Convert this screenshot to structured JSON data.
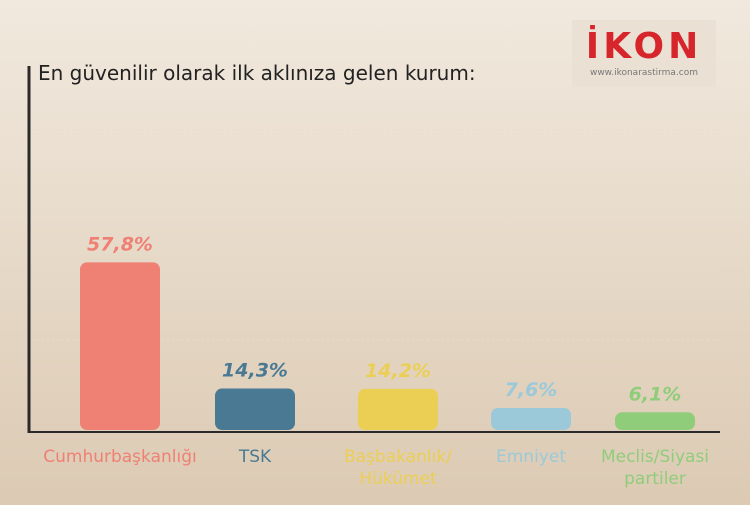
{
  "chart_data": {
    "type": "bar",
    "title": "En güvenilir olarak ilk aklınıza gelen kurum:",
    "categories": [
      "Cumhurbaşkanlığı",
      "TSK",
      "Başbakanlık/\nHükümet",
      "Emniyet",
      "Meclis/Siyasi\npartiler"
    ],
    "values": [
      57.8,
      14.3,
      14.2,
      7.6,
      6.1
    ],
    "value_labels": [
      "57,8%",
      "14,3%",
      "14,2%",
      "7,6%",
      "6,1%"
    ],
    "colors": [
      "#ef8074",
      "#4a7a93",
      "#ebcf55",
      "#9bc9d9",
      "#90cd7a"
    ]
  },
  "logo": {
    "name": "İKON",
    "url": "www.ikonarastirma.com"
  }
}
